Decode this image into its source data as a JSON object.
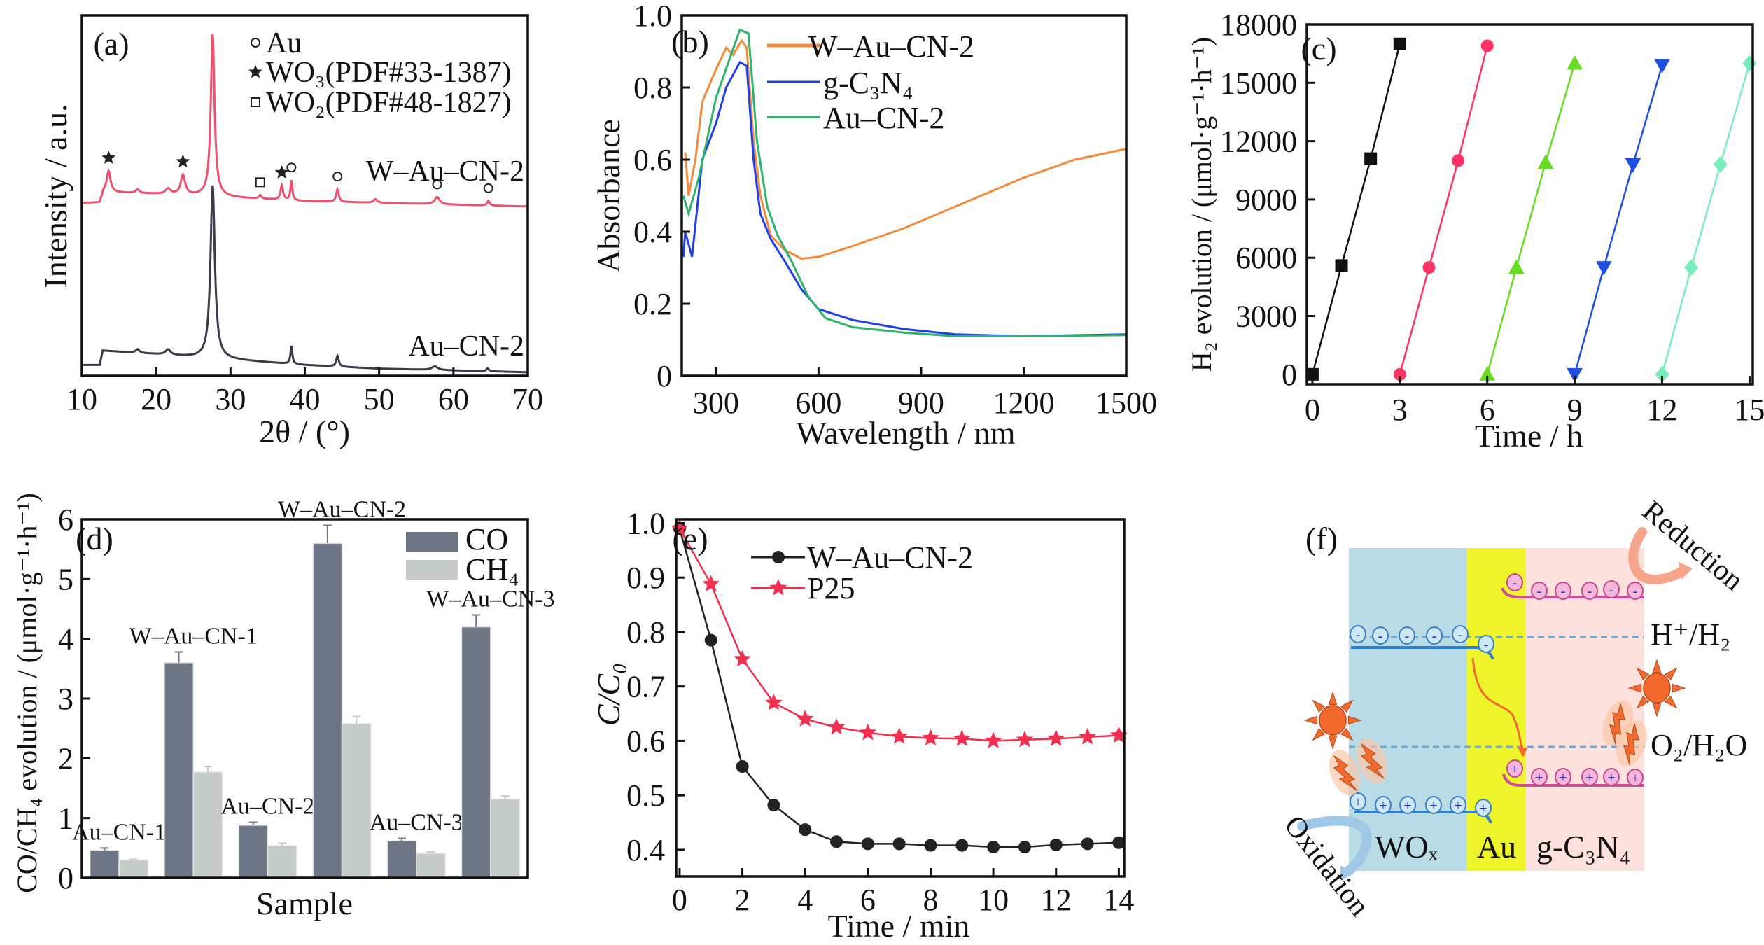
{
  "chart_data": [
    {
      "type": "line",
      "panel_label": "(a)",
      "xlabel": "2θ / (°)",
      "ylabel": "Intensity / a.u.",
      "xlim": [
        10,
        70
      ],
      "ylim": [
        0,
        100
      ],
      "xticks": [
        10,
        20,
        30,
        40,
        50,
        60,
        70
      ],
      "grid": false,
      "legend_placement": "top-right",
      "legend": [
        {
          "symbol": "circle",
          "label": "Au"
        },
        {
          "symbol": "star",
          "label": "WO₃(PDF#33-1387)"
        },
        {
          "symbol": "square",
          "label": "WO₂(PDF#48-1827)"
        }
      ],
      "series": [
        {
          "name": "W–Au–CN-2",
          "color": "#f0506e",
          "baseline": [
            [
              10,
              48
            ],
            [
              12.4,
              48
            ],
            [
              12.9,
              51
            ],
            [
              20,
              50.5
            ],
            [
              30,
              49.5
            ],
            [
              40,
              48.5
            ],
            [
              50,
              48
            ],
            [
              70,
              47
            ]
          ],
          "peaks": [
            [
              13.6,
              6,
              0.3
            ],
            [
              17.5,
              1,
              0.3
            ],
            [
              21.6,
              1.5,
              0.4
            ],
            [
              23.6,
              5.5,
              0.35
            ],
            [
              27.6,
              45,
              0.3
            ],
            [
              34.0,
              1,
              0.2
            ],
            [
              36.9,
              4,
              0.2
            ],
            [
              38.2,
              5.5,
              0.15
            ],
            [
              44.4,
              3.5,
              0.2
            ],
            [
              49.5,
              1,
              0.3
            ],
            [
              57.8,
              2,
              0.4
            ],
            [
              64.7,
              1.3,
              0.2
            ]
          ],
          "markers": [
            {
              "symbol": "star",
              "x": 13.6
            },
            {
              "symbol": "star",
              "x": 23.6
            },
            {
              "symbol": "square",
              "x": 34.0
            },
            {
              "symbol": "star",
              "x": 36.9
            },
            {
              "symbol": "circle",
              "x": 38.2
            },
            {
              "symbol": "circle",
              "x": 44.4
            },
            {
              "symbol": "circle",
              "x": 57.8
            },
            {
              "symbol": "circle",
              "x": 64.7
            }
          ]
        },
        {
          "name": "Au–CN-2",
          "color": "#3a3a48",
          "baseline": [
            [
              10,
              3
            ],
            [
              12.4,
              3
            ],
            [
              12.8,
              7
            ],
            [
              20,
              6
            ],
            [
              26,
              5
            ],
            [
              30,
              4.5
            ],
            [
              40,
              3
            ],
            [
              50,
              2
            ],
            [
              70,
              1
            ]
          ],
          "peaks": [
            [
              17.5,
              1,
              0.3
            ],
            [
              21.6,
              1.5,
              0.4
            ],
            [
              27.6,
              48,
              0.35
            ],
            [
              38.2,
              5,
              0.15
            ],
            [
              44.4,
              3,
              0.2
            ],
            [
              57.5,
              1,
              0.5
            ],
            [
              64.6,
              0.8,
              0.2
            ]
          ],
          "markers": []
        }
      ]
    },
    {
      "type": "line",
      "panel_label": "(b)",
      "xlabel": "Wavelength / nm",
      "ylabel": "Absorbance",
      "xlim": [
        200,
        1500
      ],
      "ylim": [
        0,
        1.0
      ],
      "xticks": [
        300,
        600,
        900,
        1200,
        1500
      ],
      "yticks": [
        "0",
        "0.2",
        "0.4",
        "0.6",
        "0.8",
        "1.0"
      ],
      "grid": false,
      "legend_placement": "top-right",
      "series": [
        {
          "name": "W–Au–CN-2",
          "color": "#f58a3a",
          "points": [
            [
              210,
              0.62
            ],
            [
              220,
              0.5
            ],
            [
              240,
              0.6
            ],
            [
              260,
              0.76
            ],
            [
              300,
              0.85
            ],
            [
              330,
              0.91
            ],
            [
              350,
              0.89
            ],
            [
              375,
              0.93
            ],
            [
              390,
              0.91
            ],
            [
              410,
              0.65
            ],
            [
              430,
              0.5
            ],
            [
              460,
              0.39
            ],
            [
              500,
              0.35
            ],
            [
              550,
              0.325
            ],
            [
              600,
              0.33
            ],
            [
              700,
              0.36
            ],
            [
              850,
              0.41
            ],
            [
              1000,
              0.47
            ],
            [
              1200,
              0.55
            ],
            [
              1350,
              0.6
            ],
            [
              1500,
              0.63
            ]
          ]
        },
        {
          "name": "g-C₃N₄",
          "color": "#1f3fe8",
          "points": [
            [
              205,
              0.33
            ],
            [
              210,
              0.4
            ],
            [
              230,
              0.33
            ],
            [
              260,
              0.6
            ],
            [
              300,
              0.7
            ],
            [
              330,
              0.8
            ],
            [
              370,
              0.87
            ],
            [
              390,
              0.86
            ],
            [
              410,
              0.6
            ],
            [
              430,
              0.45
            ],
            [
              460,
              0.38
            ],
            [
              500,
              0.32
            ],
            [
              550,
              0.24
            ],
            [
              600,
              0.185
            ],
            [
              700,
              0.155
            ],
            [
              850,
              0.13
            ],
            [
              1000,
              0.115
            ],
            [
              1200,
              0.11
            ],
            [
              1500,
              0.115
            ]
          ]
        },
        {
          "name": "Au–CN-2",
          "color": "#2fb36a",
          "points": [
            [
              205,
              0.5
            ],
            [
              220,
              0.45
            ],
            [
              250,
              0.55
            ],
            [
              300,
              0.77
            ],
            [
              340,
              0.88
            ],
            [
              370,
              0.96
            ],
            [
              395,
              0.95
            ],
            [
              420,
              0.65
            ],
            [
              450,
              0.47
            ],
            [
              480,
              0.39
            ],
            [
              520,
              0.32
            ],
            [
              570,
              0.22
            ],
            [
              620,
              0.16
            ],
            [
              700,
              0.135
            ],
            [
              850,
              0.12
            ],
            [
              1000,
              0.11
            ],
            [
              1200,
              0.11
            ],
            [
              1500,
              0.113
            ]
          ]
        }
      ]
    },
    {
      "type": "line",
      "panel_label": "(c)",
      "xlabel": "Time / h",
      "ylabel": "H₂ evolution / (μmol·g⁻¹·h⁻¹)",
      "xlim": [
        -0.19,
        15.11
      ],
      "ylim": [
        -510,
        18000
      ],
      "xticks": [
        0,
        3,
        6,
        9,
        12,
        15
      ],
      "yticks": [
        "0",
        "3000",
        "6000",
        "9000",
        "12000",
        "15000",
        "18000"
      ],
      "grid": false,
      "series": [
        {
          "color": "#111111",
          "marker": "square",
          "x": [
            0,
            1,
            2,
            3
          ],
          "y": [
            0,
            5600,
            11100,
            17000
          ]
        },
        {
          "color": "#ff3366",
          "marker": "circle",
          "x": [
            3,
            4,
            5,
            6
          ],
          "y": [
            0,
            5500,
            11000,
            16900
          ]
        },
        {
          "color": "#66dd22",
          "marker": "tri_up",
          "x": [
            6,
            7,
            8,
            9
          ],
          "y": [
            0,
            5500,
            10900,
            16000
          ]
        },
        {
          "color": "#1f4fe0",
          "marker": "tri_down",
          "x": [
            9,
            10,
            11,
            12
          ],
          "y": [
            0,
            5500,
            10800,
            15900
          ]
        },
        {
          "color": "#77eebb",
          "marker": "diamond",
          "x": [
            12,
            13,
            14,
            15
          ],
          "y": [
            0,
            5500,
            10800,
            16000
          ]
        }
      ]
    },
    {
      "type": "bar",
      "panel_label": "(d)",
      "xlabel": "Sample",
      "ylabel": "CO/CH₄ evolution / (μmol·g⁻¹·h⁻¹)",
      "ylim": [
        0,
        6
      ],
      "yticks": [
        "0",
        "1",
        "2",
        "3",
        "4",
        "5",
        "6"
      ],
      "grid": false,
      "legend_placement": "top-right",
      "categories": [
        "Au–CN-1",
        "W–Au–CN-1",
        "Au–CN-2",
        "W–Au–CN-2",
        "Au–CN-3",
        "W–Au–CN-3"
      ],
      "series": [
        {
          "name": "CO",
          "color": "#6e7585",
          "values": [
            0.46,
            3.6,
            0.88,
            5.6,
            0.62,
            4.2
          ],
          "errors": [
            0.04,
            0.18,
            0.05,
            0.3,
            0.04,
            0.2
          ]
        },
        {
          "name": "CH₄",
          "color": "#c5cbc6",
          "values": [
            0.3,
            1.77,
            0.54,
            2.58,
            0.41,
            1.32
          ],
          "errors": [
            0.01,
            0.09,
            0.04,
            0.12,
            0.02,
            0.05
          ]
        }
      ]
    },
    {
      "type": "line",
      "panel_label": "(e)",
      "xlabel": "Time / min",
      "ylabel": "C/C₀",
      "xlim": [
        -0.11,
        14.17
      ],
      "ylim": [
        0.351,
        1.007
      ],
      "xticks": [
        0,
        2,
        4,
        6,
        8,
        10,
        12,
        14
      ],
      "yticks": [
        "0.4",
        "0.5",
        "0.6",
        "0.7",
        "0.8",
        "0.9",
        "1.0"
      ],
      "grid": false,
      "legend_placement": "top-center",
      "x": [
        0,
        1,
        2,
        3,
        4,
        5,
        6,
        7,
        8,
        9,
        10,
        11,
        12,
        13,
        14
      ],
      "series": [
        {
          "name": "W–Au–CN-2",
          "color": "#222222",
          "marker": "hexagon",
          "values": [
            0.99,
            0.785,
            0.553,
            0.482,
            0.437,
            0.415,
            0.411,
            0.411,
            0.408,
            0.408,
            0.405,
            0.405,
            0.409,
            0.411,
            0.413
          ]
        },
        {
          "name": "P25",
          "color": "#f0304e",
          "marker": "star",
          "values": [
            0.99,
            0.888,
            0.75,
            0.67,
            0.64,
            0.625,
            0.615,
            0.608,
            0.605,
            0.604,
            0.6,
            0.602,
            0.604,
            0.607,
            0.61
          ]
        }
      ]
    }
  ],
  "diagram": {
    "panel_label": "(f)",
    "regions": [
      {
        "label": "WOₓ",
        "color": "#b9dbe5"
      },
      {
        "label": "Au",
        "color": "#eef52a"
      },
      {
        "label": "g-C₃N₄",
        "color": "#fde1dc"
      }
    ],
    "levels": {
      "h_label": "H⁺/H₂",
      "o_label": "O₂/H₂O"
    },
    "reduction_label": "Reduction",
    "oxidation_label": "Oxidation",
    "electron_sign": "-",
    "hole_sign": "+",
    "colors": {
      "wox_band": "#2f7fd0",
      "gcn_band": "#d24a9a",
      "sun": "#f26a2e",
      "dash": "#6aaad8"
    }
  }
}
